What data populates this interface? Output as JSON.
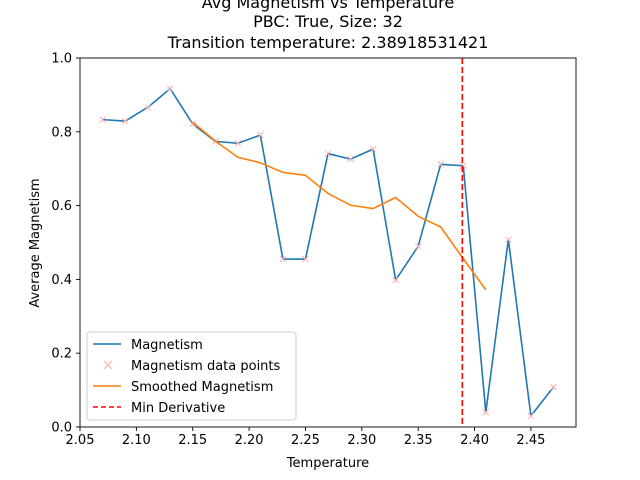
{
  "chart_data": {
    "type": "line",
    "title_lines": [
      "Avg Magnetism vs Temperature",
      "PBC: True, Size: 32",
      "Transition temperature: 2.38918531421"
    ],
    "xlabel": "Temperature",
    "ylabel": "Average Magnetism",
    "xlim": [
      2.05,
      2.49
    ],
    "ylim": [
      0.0,
      1.0
    ],
    "xticks": [
      2.05,
      2.1,
      2.15,
      2.2,
      2.25,
      2.3,
      2.35,
      2.4,
      2.45
    ],
    "xtick_labels": [
      "2.05",
      "2.10",
      "2.15",
      "2.20",
      "2.25",
      "2.30",
      "2.35",
      "2.40",
      "2.45"
    ],
    "yticks": [
      0.0,
      0.2,
      0.4,
      0.6,
      0.8,
      1.0
    ],
    "ytick_labels": [
      "0.0",
      "0.2",
      "0.4",
      "0.6",
      "0.8",
      "1.0"
    ],
    "grid": false,
    "legend_position": "lower-left",
    "series": [
      {
        "name": "Magnetism",
        "kind": "line",
        "color": "#1f77b4",
        "x": [
          2.07,
          2.09,
          2.11,
          2.13,
          2.15,
          2.17,
          2.19,
          2.21,
          2.23,
          2.25,
          2.27,
          2.29,
          2.31,
          2.33,
          2.35,
          2.37,
          2.39,
          2.41,
          2.43,
          2.45,
          2.47
        ],
        "y": [
          0.833,
          0.829,
          0.866,
          0.917,
          0.821,
          0.774,
          0.769,
          0.791,
          0.455,
          0.455,
          0.741,
          0.726,
          0.753,
          0.398,
          0.49,
          0.712,
          0.708,
          0.04,
          0.508,
          0.03,
          0.108
        ]
      },
      {
        "name": "Magnetism data points",
        "kind": "scatter",
        "marker": "x",
        "color": "#ffb0b0",
        "x": [
          2.07,
          2.09,
          2.11,
          2.13,
          2.15,
          2.17,
          2.19,
          2.21,
          2.23,
          2.25,
          2.27,
          2.29,
          2.31,
          2.33,
          2.35,
          2.37,
          2.39,
          2.41,
          2.43,
          2.45,
          2.47
        ],
        "y": [
          0.833,
          0.829,
          0.866,
          0.917,
          0.821,
          0.774,
          0.769,
          0.791,
          0.455,
          0.455,
          0.741,
          0.726,
          0.753,
          0.398,
          0.49,
          0.712,
          0.708,
          0.04,
          0.508,
          0.03,
          0.108
        ]
      },
      {
        "name": "Smoothed Magnetism",
        "kind": "line",
        "color": "#ff7f0e",
        "x": [
          2.15,
          2.17,
          2.19,
          2.21,
          2.23,
          2.25,
          2.27,
          2.29,
          2.31,
          2.33,
          2.35,
          2.37,
          2.39,
          2.41
        ],
        "y": [
          0.826,
          0.775,
          0.731,
          0.716,
          0.69,
          0.682,
          0.633,
          0.601,
          0.592,
          0.622,
          0.571,
          0.542,
          0.456,
          0.372
        ]
      }
    ],
    "vlines": [
      {
        "name": "Min Derivative",
        "x": 2.38918531421,
        "color": "#ff0000",
        "style": "dashed"
      }
    ]
  }
}
